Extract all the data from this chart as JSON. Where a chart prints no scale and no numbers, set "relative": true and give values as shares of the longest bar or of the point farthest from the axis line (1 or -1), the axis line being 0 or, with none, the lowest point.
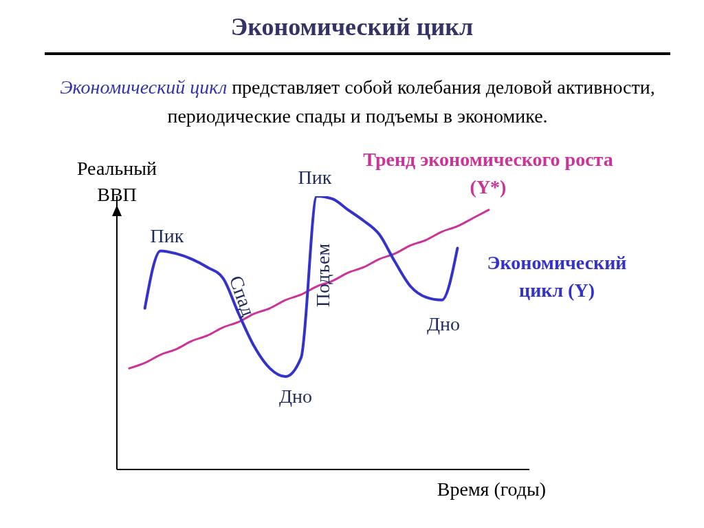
{
  "chart_data": {
    "type": "line",
    "title": "Экономический цикл",
    "subtitle": "Экономический цикл представляет собой колебания деловой активности, периодические спады и подъемы в экономике.",
    "xlabel": "Время (годы)",
    "ylabel": "Реальный ВВП",
    "relative": true,
    "categories": [
      null,
      null,
      null,
      null,
      null,
      null,
      null,
      null,
      null,
      null,
      null,
      null,
      null,
      null,
      null,
      null,
      null,
      null,
      null,
      null,
      null,
      null,
      null,
      null
    ],
    "series": [
      {
        "name": "Тренд экономического роста (Y*)",
        "color": "#cc3399",
        "values": [
          0.37,
          0.39,
          0.42,
          0.44,
          0.47,
          0.49,
          0.52,
          0.54,
          0.57,
          0.59,
          0.62,
          0.64,
          0.67,
          0.69,
          0.72,
          0.74,
          0.77,
          0.79,
          0.82,
          0.84,
          0.87,
          0.89,
          0.92,
          0.95
        ]
      },
      {
        "name": "Экономический цикл (Y)",
        "color": "#3333cc",
        "values": [
          null,
          0.59,
          0.8,
          0.79,
          0.77,
          0.74,
          0.7,
          0.57,
          0.45,
          0.37,
          0.34,
          0.41,
          1,
          0.99,
          0.95,
          0.91,
          0.86,
          0.76,
          0.67,
          0.63,
          0.62,
          0.81,
          null,
          null
        ]
      }
    ],
    "annotations": [
      "Пик",
      "Пик",
      "Дно",
      "Дно",
      "Спад",
      "Подъем"
    ]
  }
}
